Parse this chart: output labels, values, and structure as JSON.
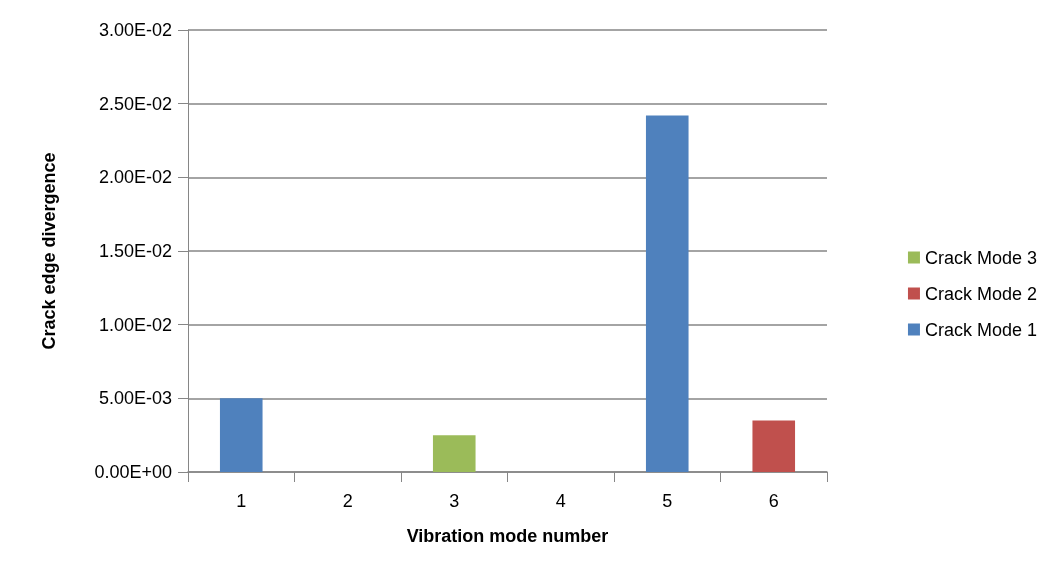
{
  "chart_data": {
    "type": "bar",
    "stacked": true,
    "xlabel": "Vibration mode number",
    "ylabel": "Crack edge divergence",
    "categories": [
      "1",
      "2",
      "3",
      "4",
      "5",
      "6"
    ],
    "series": [
      {
        "name": "Crack Mode 1",
        "color": "#4f81bd",
        "values": [
          0.005,
          null,
          null,
          null,
          0.0242,
          null
        ]
      },
      {
        "name": "Crack Mode 2",
        "color": "#c0504d",
        "values": [
          null,
          null,
          null,
          null,
          null,
          0.0035
        ]
      },
      {
        "name": "Crack Mode 3",
        "color": "#9bbb59",
        "values": [
          null,
          null,
          0.0025,
          null,
          null,
          null
        ]
      }
    ],
    "ylim": [
      0,
      0.03
    ],
    "yticks": [
      {
        "value": 0,
        "label": "0.00E+00"
      },
      {
        "value": 0.005,
        "label": "5.00E-03"
      },
      {
        "value": 0.01,
        "label": "1.00E-02"
      },
      {
        "value": 0.015,
        "label": "1.50E-02"
      },
      {
        "value": 0.02,
        "label": "2.00E-02"
      },
      {
        "value": 0.025,
        "label": "2.50E-02"
      },
      {
        "value": 0.03,
        "label": "3.00E-02"
      }
    ],
    "grid": "y",
    "legend": "right"
  }
}
